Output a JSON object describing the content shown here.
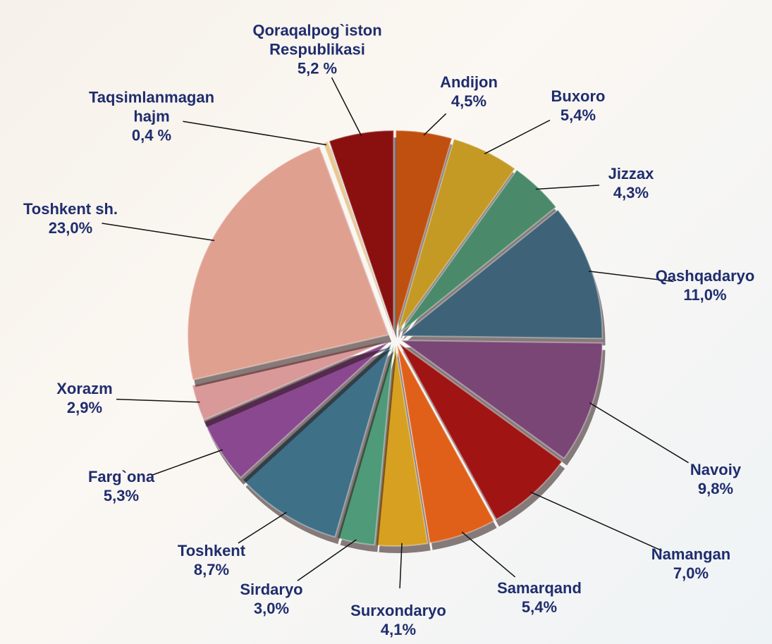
{
  "chart_data": {
    "type": "pie",
    "categories": [
      "Andijon",
      "Buxoro",
      "Jizzax",
      "Qashqadaryo",
      "Navoiy",
      "Namangan",
      "Samarqand",
      "Surxondaryo",
      "Sirdaryo",
      "Toshkent",
      "Farg`ona",
      "Xorazm",
      "Toshkent sh.",
      "Taqsimlanmagan hajm",
      "Qoraqalpog`iston Respublikasi"
    ],
    "values": [
      4.5,
      5.4,
      4.3,
      11.0,
      9.8,
      7.0,
      5.4,
      4.1,
      3.0,
      8.7,
      5.3,
      2.9,
      23.0,
      0.4,
      5.2
    ],
    "value_labels": [
      "4,5%",
      "5,4%",
      "4,3%",
      "11,0%",
      "9,8%",
      "7,0%",
      "5,4%",
      "4,1%",
      "3,0%",
      "8,7%",
      "5,3%",
      "2,9%",
      "23,0%",
      "0,4 %",
      "5,2 %"
    ],
    "colors": [
      "#c0500f",
      "#c49a25",
      "#4a8a6a",
      "#3e6378",
      "#7a4676",
      "#a01414",
      "#e0601a",
      "#d8a020",
      "#4f9a78",
      "#3e7088",
      "#8a4890",
      "#d99999",
      "#e0a090",
      "#e8c890",
      "#8a1010"
    ]
  }
}
